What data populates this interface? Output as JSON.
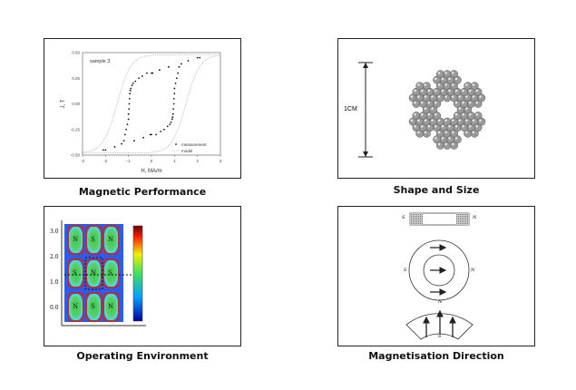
{
  "cards": [
    {
      "caption": "Magnetic Performance"
    },
    {
      "caption": "Shape and Size",
      "dimension_label": "1CM"
    },
    {
      "caption": "Operating Environment",
      "y_ticks": [
        "3.0",
        "2.0",
        "1.0",
        "0.0"
      ],
      "poles": [
        [
          "N",
          "S",
          "N"
        ],
        [
          "S",
          "N",
          "S"
        ],
        [
          "N",
          "S",
          "N"
        ]
      ]
    },
    {
      "caption": "Magnetisation Direction",
      "pole_s": "S",
      "pole_n": "N"
    }
  ],
  "chart_data": {
    "type": "scatter",
    "annotation": "sample 3",
    "xlabel": "H, MA/m",
    "ylabel": "J, T",
    "xlim": [
      -3,
      3
    ],
    "ylim": [
      -0.5,
      0.5
    ],
    "x_ticks": [
      "-3",
      "-2",
      "-1",
      "0",
      "1",
      "2",
      "3"
    ],
    "y_ticks": [
      "0.50",
      "0.25",
      "0.00",
      "-0.25",
      "-0.50"
    ],
    "legend": [
      "measurement",
      "model"
    ],
    "legend_position": "bottom-right",
    "series": [
      {
        "name": "measurement",
        "x": [
          -2.1,
          -2.0,
          -1.6,
          -1.3,
          -1.2,
          -1.15,
          -1.1,
          -1.05,
          -1.0,
          -1.0,
          -0.98,
          -0.97,
          -0.95,
          -0.94,
          -0.92,
          -0.9,
          -0.85,
          -0.8,
          -0.7,
          -0.55,
          -0.4,
          -0.2,
          0,
          0.05,
          0.35,
          0.75,
          2.1,
          2.0,
          1.6,
          1.3,
          1.2,
          1.15,
          1.1,
          1.05,
          1.0,
          1.0,
          0.98,
          0.97,
          0.95,
          0.94,
          0.92,
          0.9,
          0.85,
          0.8,
          0.7,
          0.55,
          0.4,
          0.2,
          0,
          -0.05,
          -0.35,
          -0.75
        ],
        "y": [
          -0.45,
          -0.45,
          -0.42,
          -0.39,
          -0.36,
          -0.3,
          -0.25,
          -0.2,
          -0.15,
          -0.1,
          -0.05,
          0,
          0.05,
          0.1,
          0.13,
          0.15,
          0.18,
          0.2,
          0.22,
          0.25,
          0.27,
          0.3,
          0.3,
          0.3,
          0.33,
          0.36,
          0.45,
          0.45,
          0.42,
          0.39,
          0.36,
          0.3,
          0.25,
          0.2,
          0.15,
          0.1,
          0.05,
          0,
          -0.05,
          -0.1,
          -0.13,
          -0.15,
          -0.18,
          -0.2,
          -0.22,
          -0.25,
          -0.27,
          -0.3,
          -0.3,
          -0.3,
          -0.33,
          -0.36
        ]
      },
      {
        "name": "model",
        "style": "dotted hysteresis loop, coercivity ~1.5 MA/m"
      }
    ]
  }
}
